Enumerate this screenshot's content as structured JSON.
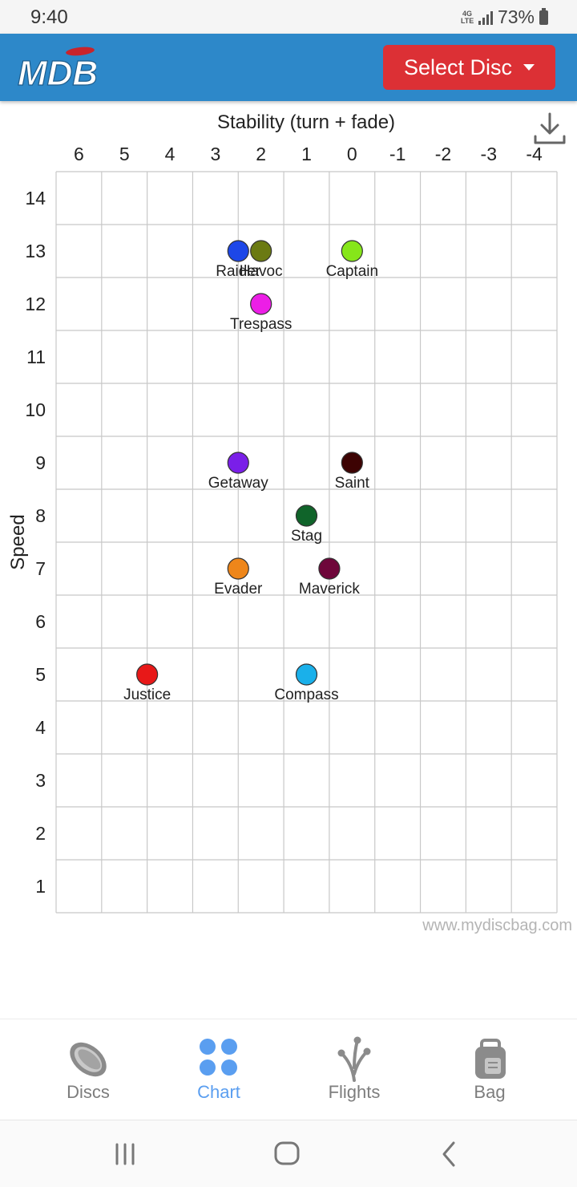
{
  "status_bar": {
    "time": "9:40",
    "network": "4G LTE",
    "battery": "73%"
  },
  "app_bar": {
    "logo_text": "MDB",
    "select_disc_label": "Select Disc"
  },
  "colors": {
    "app_bar": "#2d88c9",
    "select_button": "#dc3035",
    "nav_active": "#5a9ef0",
    "nav_inactive": "#7d7d7d"
  },
  "chart_data": {
    "type": "scatter",
    "xlabel": "Stability (turn + fade)",
    "ylabel": "Speed",
    "x_ticks": [
      "6",
      "5",
      "4",
      "3",
      "2",
      "1",
      "0",
      "-1",
      "-2",
      "-3",
      "-4"
    ],
    "y_ticks": [
      "14",
      "13",
      "12",
      "11",
      "10",
      "9",
      "8",
      "7",
      "6",
      "5",
      "4",
      "3",
      "2",
      "1"
    ],
    "xlim": [
      6.5,
      -4.5
    ],
    "ylim": [
      0.5,
      14.5
    ],
    "x_reversed": true,
    "grid": true,
    "watermark": "www.mydiscbag.com",
    "points": [
      {
        "name": "Raider",
        "x": 2.5,
        "y": 13,
        "color": "#1d47e8"
      },
      {
        "name": "Havoc",
        "x": 2,
        "y": 13,
        "color": "#6b7a12"
      },
      {
        "name": "Captain",
        "x": 0,
        "y": 13,
        "color": "#86e61a"
      },
      {
        "name": "Trespass",
        "x": 2,
        "y": 12,
        "color": "#ec1ee6"
      },
      {
        "name": "Getaway",
        "x": 2.5,
        "y": 9,
        "color": "#7a1fe8"
      },
      {
        "name": "Saint",
        "x": 0,
        "y": 9,
        "color": "#3d0303"
      },
      {
        "name": "Stag",
        "x": 1,
        "y": 8,
        "color": "#10642a"
      },
      {
        "name": "Evader",
        "x": 2.5,
        "y": 7,
        "color": "#ee861a"
      },
      {
        "name": "Maverick",
        "x": 0.5,
        "y": 7,
        "color": "#6e063a"
      },
      {
        "name": "Justice",
        "x": 4.5,
        "y": 5,
        "color": "#e81818"
      },
      {
        "name": "Compass",
        "x": 1,
        "y": 5,
        "color": "#1ab0ea"
      }
    ]
  },
  "bottom_nav": {
    "items": [
      {
        "label": "Discs",
        "icon": "disc-icon"
      },
      {
        "label": "Chart",
        "icon": "chart-dots-icon"
      },
      {
        "label": "Flights",
        "icon": "flights-icon"
      },
      {
        "label": "Bag",
        "icon": "bag-icon"
      }
    ],
    "active": "Chart"
  },
  "system_nav": {
    "buttons": [
      "recents-icon",
      "home-icon",
      "back-icon"
    ]
  }
}
